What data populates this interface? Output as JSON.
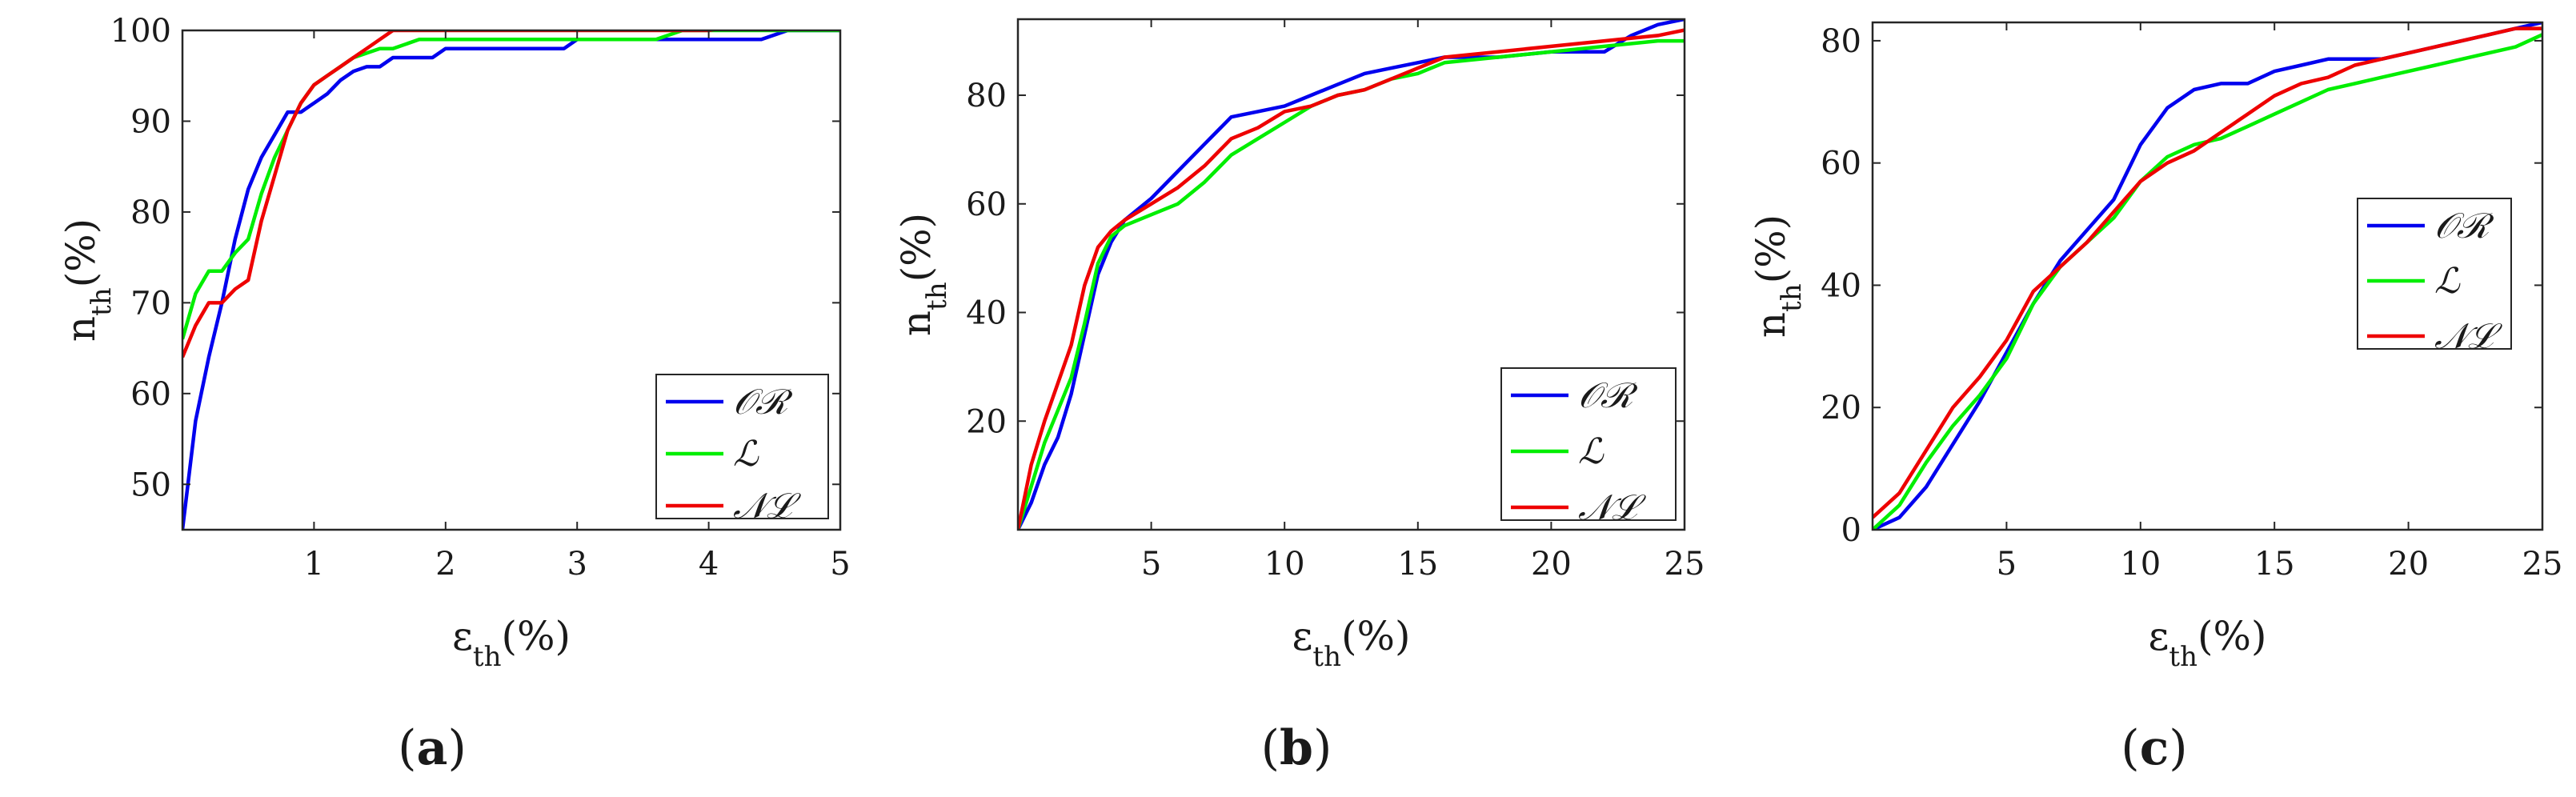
{
  "figure": {
    "panel_labels": [
      "(a)",
      "(b)",
      "(c)"
    ]
  },
  "legend_entries": [
    "𝒪ℛ",
    "ℒ",
    "𝒩ℒ"
  ],
  "colors": {
    "OR": "#0000ee",
    "L": "#00ee00",
    "NL": "#ee0000",
    "axis": "#262626"
  },
  "chart_data": [
    {
      "type": "line",
      "panel": "(a)",
      "xlabel": "ε_th(%)",
      "ylabel": "n_th(%)",
      "xlim": [
        0,
        5
      ],
      "ylim": [
        45,
        100
      ],
      "xticks": [
        1,
        2,
        3,
        4,
        5
      ],
      "yticks": [
        50,
        60,
        70,
        80,
        90,
        100
      ],
      "legend_position": "bottom-right",
      "series": [
        {
          "name": "𝒪ℛ",
          "key": "OR",
          "x": [
            0,
            0.1,
            0.2,
            0.3,
            0.4,
            0.5,
            0.6,
            0.7,
            0.8,
            0.9,
            1.0,
            1.1,
            1.2,
            1.3,
            1.4,
            1.5,
            1.6,
            1.7,
            1.9,
            2.0,
            2.9,
            3.0,
            4.4,
            4.6,
            5.0
          ],
          "y": [
            45,
            57,
            64,
            70,
            77,
            82.5,
            86,
            88.5,
            91,
            91,
            92,
            93,
            94.5,
            95.5,
            96,
            96,
            97,
            97,
            97,
            98,
            98,
            99,
            99,
            100,
            100
          ]
        },
        {
          "name": "ℒ",
          "key": "L",
          "x": [
            0,
            0.1,
            0.2,
            0.3,
            0.4,
            0.5,
            0.6,
            0.7,
            0.8,
            0.9,
            1.0,
            1.1,
            1.2,
            1.3,
            1.5,
            1.6,
            1.8,
            2.0,
            2.5,
            3.0,
            3.6,
            3.8,
            4.0,
            4.5,
            5.0
          ],
          "y": [
            66,
            71,
            73.5,
            73.5,
            75.5,
            77,
            82,
            86,
            89,
            92,
            94,
            95,
            96,
            97,
            98,
            98,
            99,
            99,
            99,
            99,
            99,
            100,
            100,
            100,
            100
          ]
        },
        {
          "name": "𝒩ℒ",
          "key": "NL",
          "x": [
            0,
            0.1,
            0.2,
            0.3,
            0.4,
            0.5,
            0.6,
            0.7,
            0.8,
            0.9,
            1.0,
            1.1,
            1.2,
            1.3,
            1.4,
            1.5,
            1.6,
            2.0,
            3.0,
            4.0,
            4.2,
            5.0
          ],
          "y": [
            64,
            67.5,
            70,
            70,
            71.5,
            72.5,
            79,
            84,
            89,
            92,
            94,
            95,
            96,
            97,
            98,
            99,
            100,
            100,
            100,
            100,
            100.5,
            100.5
          ]
        }
      ]
    },
    {
      "type": "line",
      "panel": "(b)",
      "xlabel": "ε_th(%)",
      "ylabel": "n_th(%)",
      "xlim": [
        0,
        25
      ],
      "ylim": [
        0,
        94
      ],
      "xticks": [
        5,
        10,
        15,
        20,
        25
      ],
      "yticks": [
        20,
        40,
        60,
        80
      ],
      "legend_position": "bottom-right",
      "series": [
        {
          "name": "𝒪ℛ",
          "key": "OR",
          "x": [
            0,
            0.5,
            1,
            1.5,
            2,
            2.5,
            3,
            3.5,
            4,
            5,
            6,
            7,
            8,
            9,
            10,
            11,
            12,
            13,
            14,
            15,
            16,
            18,
            20,
            22,
            23,
            24,
            25
          ],
          "y": [
            0,
            5,
            12,
            17,
            25,
            36,
            47,
            53,
            57,
            61,
            66,
            71,
            76,
            77,
            78,
            80,
            82,
            84,
            85,
            86,
            87,
            87,
            88,
            88,
            91,
            93,
            94
          ]
        },
        {
          "name": "ℒ",
          "key": "L",
          "x": [
            0,
            0.5,
            1,
            1.5,
            2,
            2.5,
            3,
            3.5,
            4,
            5,
            6,
            7,
            8,
            9,
            10,
            11,
            12,
            13,
            14,
            15,
            16,
            18,
            20,
            22,
            24,
            25
          ],
          "y": [
            0,
            8,
            16,
            22,
            28,
            38,
            49,
            54,
            56,
            58,
            60,
            64,
            69,
            72,
            75,
            78,
            80,
            81,
            83,
            84,
            86,
            87,
            88,
            89,
            90,
            90
          ]
        },
        {
          "name": "𝒩ℒ",
          "key": "NL",
          "x": [
            0,
            0.5,
            1,
            1.5,
            2,
            2.5,
            3,
            3.5,
            4,
            5,
            6,
            7,
            8,
            9,
            10,
            11,
            12,
            13,
            14,
            15,
            16,
            18,
            20,
            22,
            24,
            25
          ],
          "y": [
            0,
            12,
            20,
            27,
            34,
            45,
            52,
            55,
            57,
            60,
            63,
            67,
            72,
            74,
            77,
            78,
            80,
            81,
            83,
            85,
            87,
            88,
            89,
            90,
            91,
            92
          ]
        }
      ]
    },
    {
      "type": "line",
      "panel": "(c)",
      "xlabel": "ε_th(%)",
      "ylabel": "n_th(%)",
      "xlim": [
        0,
        25
      ],
      "ylim": [
        0,
        83
      ],
      "xticks": [
        5,
        10,
        15,
        20,
        25
      ],
      "yticks": [
        0,
        20,
        40,
        60,
        80
      ],
      "legend_position": "middle-right",
      "series": [
        {
          "name": "𝒪ℛ",
          "key": "OR",
          "x": [
            0,
            1,
            2,
            3,
            4,
            5,
            6,
            7,
            8,
            9,
            10,
            11,
            12,
            13,
            14,
            15,
            16,
            17,
            18,
            19,
            20,
            21,
            22,
            23,
            24,
            25
          ],
          "y": [
            0,
            2,
            7,
            14,
            21,
            29,
            37,
            44,
            49,
            54,
            63,
            69,
            72,
            73,
            73,
            75,
            76,
            77,
            77,
            77,
            78,
            79,
            80,
            81,
            82,
            83
          ]
        },
        {
          "name": "ℒ",
          "key": "L",
          "x": [
            0,
            1,
            2,
            3,
            4,
            5,
            6,
            7,
            8,
            9,
            10,
            11,
            12,
            13,
            14,
            15,
            16,
            17,
            18,
            19,
            20,
            21,
            22,
            23,
            24,
            25
          ],
          "y": [
            0,
            4,
            11,
            17,
            22,
            28,
            37,
            43,
            47,
            51,
            57,
            61,
            63,
            64,
            66,
            68,
            70,
            72,
            73,
            74,
            75,
            76,
            77,
            78,
            79,
            81
          ]
        },
        {
          "name": "𝒩ℒ",
          "key": "NL",
          "x": [
            0,
            1,
            2,
            3,
            4,
            5,
            6,
            7,
            8,
            9,
            10,
            11,
            12,
            13,
            14,
            15,
            16,
            17,
            18,
            19,
            20,
            21,
            22,
            23,
            24,
            25
          ],
          "y": [
            2,
            6,
            13,
            20,
            25,
            31,
            39,
            43,
            47,
            52,
            57,
            60,
            62,
            65,
            68,
            71,
            73,
            74,
            76,
            77,
            78,
            79,
            80,
            81,
            82,
            82
          ]
        }
      ]
    }
  ]
}
